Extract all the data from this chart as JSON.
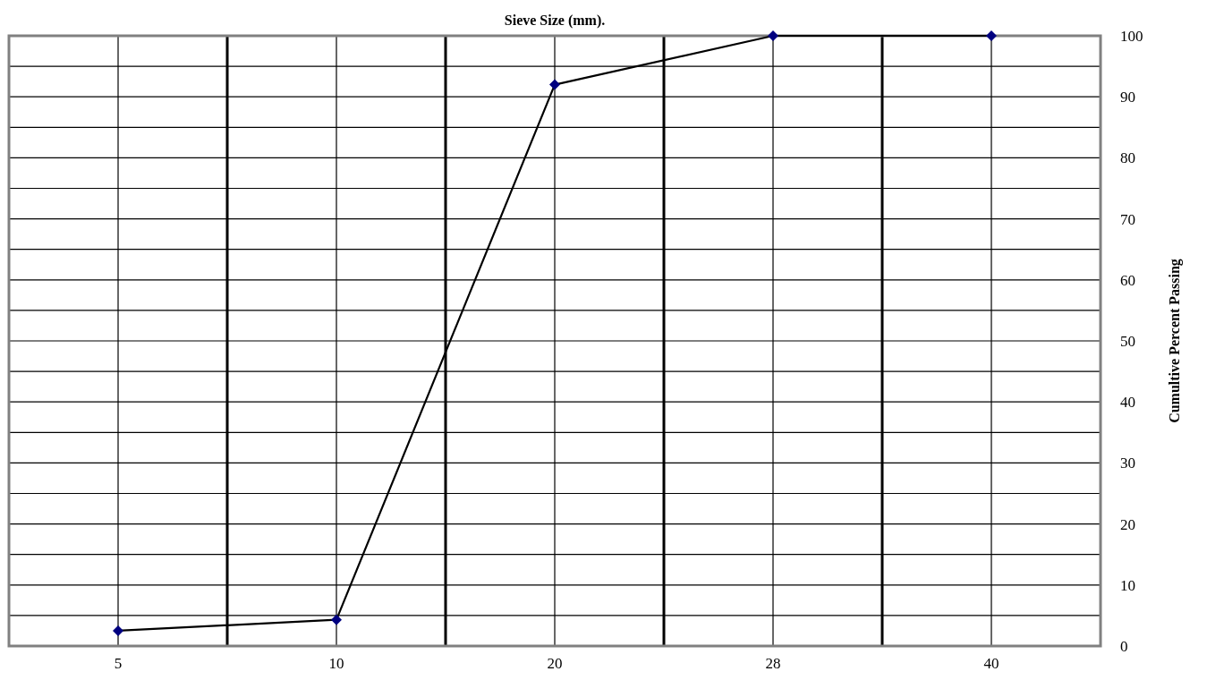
{
  "chart_data": {
    "type": "line",
    "title": "Sieve Size (mm).",
    "ylabel": "Cumultive Percent Passing",
    "categories": [
      "5",
      "10",
      "20",
      "28",
      "40"
    ],
    "series": [
      {
        "color": "#000080",
        "values": [
          2.5,
          4.3,
          92,
          100,
          100
        ]
      }
    ],
    "ylim": [
      0,
      100
    ],
    "yticks": [
      0,
      {
        "value": 5,
        "label": null
      },
      10,
      {
        "value": 15,
        "label": null
      },
      20,
      {
        "value": 25,
        "label": null
      },
      30,
      {
        "value": 35,
        "label": null
      },
      40,
      {
        "value": 45,
        "label": null
      },
      50,
      {
        "value": 55,
        "label": null
      },
      60,
      {
        "value": 65,
        "label": null
      },
      70,
      {
        "value": 75,
        "label": null
      },
      80,
      {
        "value": 85,
        "label": null
      },
      90,
      {
        "value": 95,
        "label": null
      },
      100
    ],
    "grid": true,
    "marker": "diamond",
    "line_style": "solid"
  }
}
